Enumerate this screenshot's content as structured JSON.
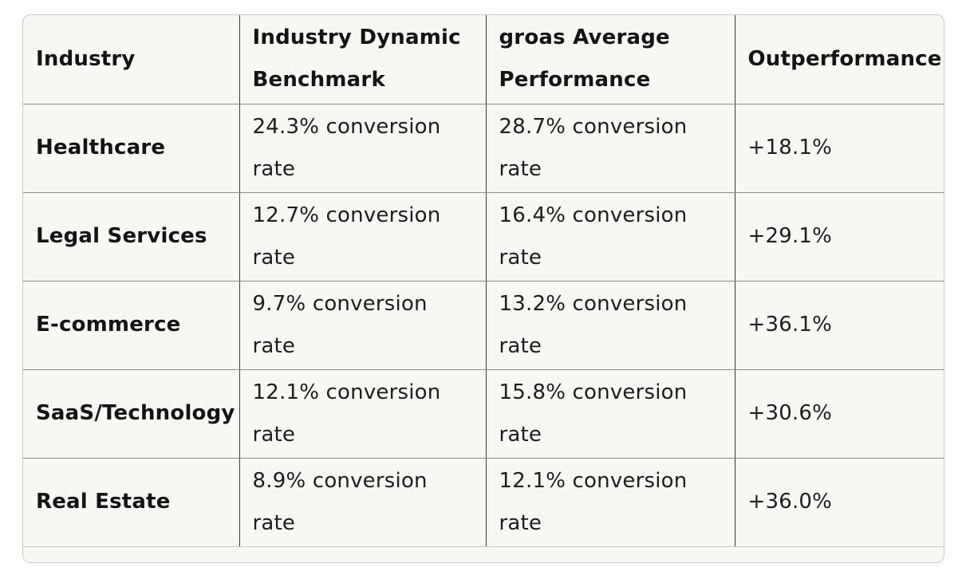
{
  "table": {
    "headers": [
      "Industry",
      "Industry Dynamic Benchmark",
      "groas Average Performance",
      "Outperformance"
    ],
    "rows": [
      {
        "industry": "Healthcare",
        "benchmark": "24.3% conversion rate",
        "groas": "28.7% conversion rate",
        "outperformance": "+18.1%"
      },
      {
        "industry": "Legal Services",
        "benchmark": "12.7% conversion rate",
        "groas": "16.4% conversion rate",
        "outperformance": "+29.1%"
      },
      {
        "industry": "E-commerce",
        "benchmark": "9.7% conversion rate",
        "groas": "13.2% conversion rate",
        "outperformance": "+36.1%"
      },
      {
        "industry": "SaaS/Technology",
        "benchmark": "12.1% conversion rate",
        "groas": "15.8% conversion rate",
        "outperformance": "+30.6%"
      },
      {
        "industry": "Real Estate",
        "benchmark": "8.9% conversion rate",
        "groas": "12.1% conversion rate",
        "outperformance": "+36.0%"
      }
    ]
  }
}
